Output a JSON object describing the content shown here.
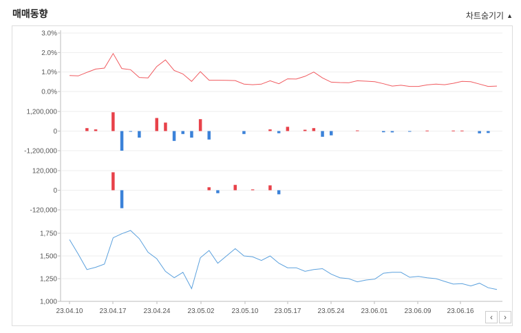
{
  "header": {
    "title": "매매동향",
    "toggle_label": "차트숨기기",
    "toggle_icon": "triangle-up-icon"
  },
  "nav": {
    "prev_label": "‹",
    "next_label": "›"
  },
  "chart_data": {
    "type": "multi-panel",
    "x_ticks": [
      "23.04.10",
      "23.04.17",
      "23.04.24",
      "23.05.02",
      "23.05.10",
      "23.05.17",
      "23.05.24",
      "23.06.01",
      "23.06.09",
      "23.06.16"
    ],
    "panels": [
      {
        "type": "line",
        "color": "#f0595e",
        "ylim": [
          0,
          3.0
        ],
        "yticks": [
          0,
          1,
          2,
          3
        ],
        "ytick_labels": [
          "0.0%",
          "1.0%",
          "2.0%",
          "3.0%"
        ],
        "values": [
          0.82,
          0.8,
          0.98,
          1.15,
          1.2,
          1.95,
          1.18,
          1.12,
          0.72,
          0.7,
          1.28,
          1.62,
          1.08,
          0.9,
          0.52,
          1.02,
          0.58,
          0.58,
          0.57,
          0.56,
          0.38,
          0.35,
          0.38,
          0.55,
          0.4,
          0.65,
          0.64,
          0.78,
          1.0,
          0.7,
          0.48,
          0.46,
          0.45,
          0.55,
          0.53,
          0.5,
          0.4,
          0.28,
          0.32,
          0.26,
          0.26,
          0.34,
          0.38,
          0.35,
          0.42,
          0.52,
          0.5,
          0.38,
          0.26,
          0.28
        ]
      },
      {
        "type": "bar",
        "ylim": [
          -1500000,
          1500000
        ],
        "yticks": [
          -1200000,
          0,
          1200000
        ],
        "ytick_labels": [
          "-1,200,000",
          "0",
          "1,200,000"
        ],
        "values": [
          0,
          0,
          180000,
          100000,
          0,
          1150000,
          -1200000,
          -40000,
          -400000,
          0,
          800000,
          520000,
          -600000,
          -180000,
          -400000,
          730000,
          -520000,
          0,
          0,
          0,
          -180000,
          0,
          0,
          100000,
          -130000,
          260000,
          0,
          80000,
          180000,
          -350000,
          -260000,
          0,
          0,
          40000,
          0,
          0,
          -70000,
          -80000,
          0,
          -30000,
          0,
          30000,
          0,
          0,
          30000,
          30000,
          0,
          -140000,
          -120000,
          0
        ]
      },
      {
        "type": "bar",
        "ylim": [
          -150000,
          150000
        ],
        "yticks": [
          -120000,
          0,
          120000
        ],
        "ytick_labels": [
          "-120,000",
          "0",
          "120,000"
        ],
        "values": [
          0,
          0,
          0,
          0,
          0,
          110000,
          -110000,
          0,
          0,
          0,
          0,
          0,
          0,
          0,
          0,
          0,
          18000,
          -18000,
          0,
          33000,
          0,
          5000,
          0,
          30000,
          -25000,
          0,
          0,
          0,
          0,
          0,
          0,
          0,
          0,
          0,
          0,
          0,
          0,
          0,
          0,
          0,
          0,
          0,
          0,
          0,
          0,
          0,
          0,
          0,
          0,
          0
        ]
      },
      {
        "type": "line",
        "color": "#5aa0dd",
        "ylim": [
          1000,
          1750
        ],
        "yticks": [
          1000,
          1250,
          1500,
          1750
        ],
        "ytick_labels": [
          "1,000",
          "1,250",
          "1,500",
          "1,750"
        ],
        "values": [
          1680,
          1520,
          1350,
          1375,
          1410,
          1700,
          1745,
          1780,
          1690,
          1540,
          1470,
          1330,
          1260,
          1320,
          1140,
          1480,
          1560,
          1420,
          1500,
          1580,
          1500,
          1490,
          1450,
          1500,
          1420,
          1370,
          1370,
          1330,
          1350,
          1360,
          1300,
          1260,
          1250,
          1215,
          1235,
          1245,
          1310,
          1320,
          1320,
          1265,
          1275,
          1260,
          1250,
          1220,
          1190,
          1195,
          1170,
          1200,
          1150,
          1130
        ]
      }
    ],
    "up_color": "#e8424a",
    "down_color": "#3b82d9",
    "grid": true
  }
}
